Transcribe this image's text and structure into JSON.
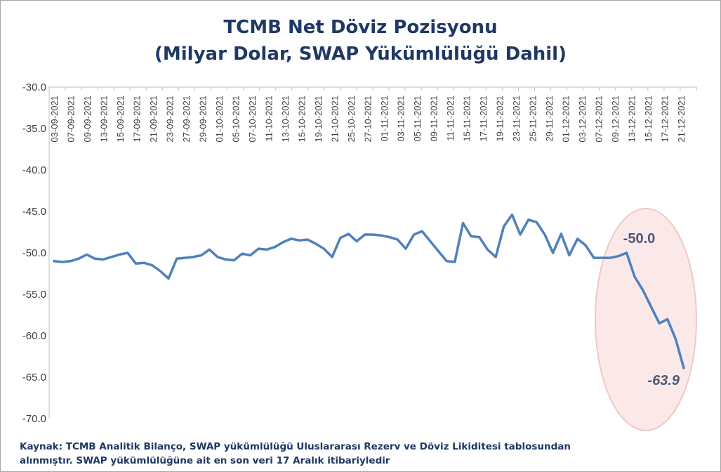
{
  "chart_data": {
    "type": "line",
    "title": "TCMB Net Döviz Pozisyonu",
    "subtitle": "(Milyar Dolar, SWAP Yükümlülüğü Dahil)",
    "xlabel": "",
    "ylabel": "",
    "ylim": [
      -70,
      -30
    ],
    "yticks": [
      "-30.0",
      "-35.0",
      "-40.0",
      "-45.0",
      "-50.0",
      "-55.0",
      "-60.0",
      "-65.0",
      "-70.0"
    ],
    "ytick_values": [
      -30,
      -35,
      -40,
      -45,
      -50,
      -55,
      -60,
      -65,
      -70
    ],
    "x_tick_labels": [
      "03-09-2021",
      "07-09-2021",
      "09-09-2021",
      "13-09-2021",
      "15-09-2021",
      "17-09-2021",
      "21-09-2021",
      "23-09-2021",
      "27-09-2021",
      "29-09-2021",
      "01-10-2021",
      "05-10-2021",
      "07-10-2021",
      "11-10-2021",
      "13-10-2021",
      "15-10-2021",
      "19-10-2021",
      "21-10-2021",
      "25-10-2021",
      "27-10-2021",
      "01-11-2021",
      "03-11-2021",
      "05-11-2021",
      "09-11-2021",
      "11-11-2021",
      "15-11-2021",
      "17-11-2021",
      "19-11-2021",
      "23-11-2021",
      "25-11-2021",
      "29-11-2021",
      "01-12-2021",
      "03-12-2021",
      "07-12-2021",
      "09-12-2021",
      "13-12-2021",
      "15-12-2021",
      "17-12-2021",
      "21-12-2021"
    ],
    "grid": false,
    "legend": "none",
    "series": [
      {
        "color": "#4f81bd",
        "values": [
          -51.0,
          -51.1,
          -51.0,
          -50.7,
          -50.2,
          -50.7,
          -50.8,
          -50.5,
          -50.2,
          -50.0,
          -51.3,
          -51.2,
          -51.5,
          -52.2,
          -53.1,
          -50.7,
          -50.6,
          -50.5,
          -50.3,
          -49.6,
          -50.5,
          -50.8,
          -50.9,
          -50.1,
          -50.3,
          -49.5,
          -49.6,
          -49.3,
          -48.7,
          -48.3,
          -48.5,
          -48.4,
          -48.9,
          -49.5,
          -50.5,
          -48.2,
          -47.7,
          -48.6,
          -47.8,
          -47.8,
          -47.9,
          -48.1,
          -48.4,
          -49.5,
          -47.8,
          -47.4,
          -48.6,
          -49.8,
          -51.0,
          -51.1,
          -46.4,
          -48.0,
          -48.1,
          -49.6,
          -50.5,
          -46.8,
          -45.4,
          -47.8,
          -46.0,
          -46.3,
          -47.8,
          -50.0,
          -47.7,
          -50.3,
          -48.3,
          -49.1,
          -50.6,
          -50.6,
          -50.6,
          -50.4,
          -50.0,
          -52.9,
          -54.5,
          -56.5,
          -58.5,
          -58.0,
          -60.4,
          -63.9
        ]
      }
    ],
    "annotations": [
      {
        "text": "-50.0",
        "at_index": 70,
        "style": "bold"
      },
      {
        "text": "-63.9",
        "at_index": 77,
        "style": "bold-italic"
      }
    ],
    "highlight": {
      "shape": "ellipse",
      "fill": "#fbe9e9",
      "stroke": "#f0c8c8"
    }
  },
  "source_note": {
    "line1": "Kaynak: TCMB Analitik Bilanço, SWAP yükümlülüğü Uluslararası Rezerv ve Döviz Likiditesi tablosundan",
    "line2": "alınmıştır. SWAP yükümlülüğüne ait en son veri 17 Aralık itibariyledir"
  }
}
